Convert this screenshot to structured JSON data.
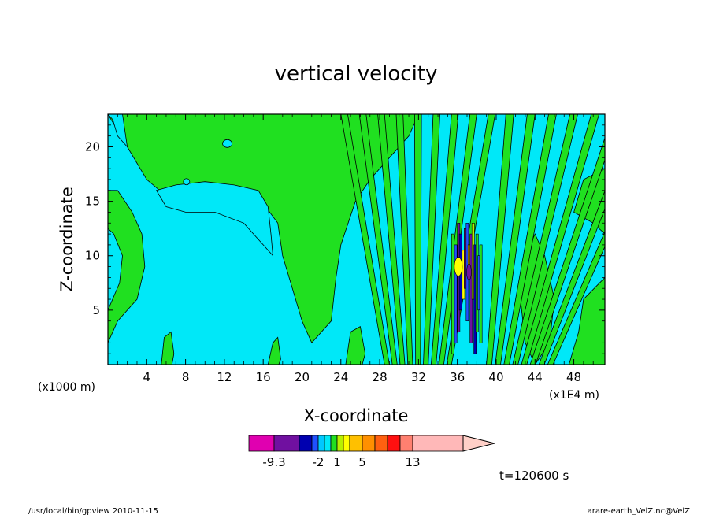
{
  "chart_data": {
    "type": "heatmap",
    "title": "vertical velocity",
    "xlabel": "X-coordinate",
    "ylabel": "Z-coordinate",
    "x_unit": "(x1E4 m)",
    "y_unit": "(x1000 m)",
    "xlim": [
      0,
      51.2
    ],
    "ylim": [
      0,
      23
    ],
    "x_ticks": [
      4,
      8,
      12,
      16,
      20,
      24,
      28,
      32,
      36,
      40,
      44,
      48
    ],
    "y_ticks": [
      5,
      10,
      15,
      20
    ],
    "grid": false,
    "colorbar": {
      "labels": [
        {
          "text": "-9.3",
          "at": -9.3
        },
        {
          "text": "-2",
          "at": -2
        },
        {
          "text": "1",
          "at": 1
        },
        {
          "text": "5",
          "at": 5
        },
        {
          "text": "13",
          "at": 13
        }
      ],
      "bins": [
        {
          "from": -13,
          "to": -9.3,
          "color": "#e000b0"
        },
        {
          "from": -9.3,
          "to": -5,
          "color": "#7010a0"
        },
        {
          "from": -5,
          "to": -3,
          "color": "#0000b0"
        },
        {
          "from": -3,
          "to": -2,
          "color": "#2050ff"
        },
        {
          "from": -2,
          "to": -1,
          "color": "#00c8ff"
        },
        {
          "from": -1,
          "to": 0,
          "color": "#00e8f8"
        },
        {
          "from": 0,
          "to": 1,
          "color": "#20e020"
        },
        {
          "from": 1,
          "to": 2,
          "color": "#b8f000"
        },
        {
          "from": 2,
          "to": 3,
          "color": "#ffff00"
        },
        {
          "from": 3,
          "to": 5,
          "color": "#ffc000"
        },
        {
          "from": 5,
          "to": 7,
          "color": "#ff9000"
        },
        {
          "from": 7,
          "to": 9,
          "color": "#ff6010"
        },
        {
          "from": 9,
          "to": 11,
          "color": "#ff1010"
        },
        {
          "from": 11,
          "to": 13,
          "color": "#ff8070"
        },
        {
          "from": 13,
          "to": 17,
          "color": "#ffb8b8"
        },
        {
          "from": 17,
          "to": 19,
          "color": "#ffd0c8"
        }
      ]
    },
    "field_notes": "dominant fields: cyan (-1 to 0) and green (0 to 1); broad green arch peaking near x=12-16 at z~15; dense vertical band of strong updraft/downdraft between x~35 and x~39 from z~1 to z~13",
    "regions_green": [
      {
        "x": [
          0,
          3.5
        ],
        "z": [
          3,
          8
        ]
      },
      {
        "x": [
          4,
          20
        ],
        "z": [
          15,
          23
        ]
      },
      {
        "x": [
          16,
          23
        ],
        "z": [
          4,
          15
        ]
      },
      {
        "x": [
          30,
          35
        ],
        "z": [
          0,
          14
        ]
      },
      {
        "x": [
          39,
          44
        ],
        "z": [
          0,
          12
        ]
      }
    ],
    "time_label": "t=120600 s"
  },
  "footer": {
    "left": "/usr/local/bin/gpview  2010-11-15",
    "right": "arare-earth_VelZ.nc@VelZ"
  }
}
